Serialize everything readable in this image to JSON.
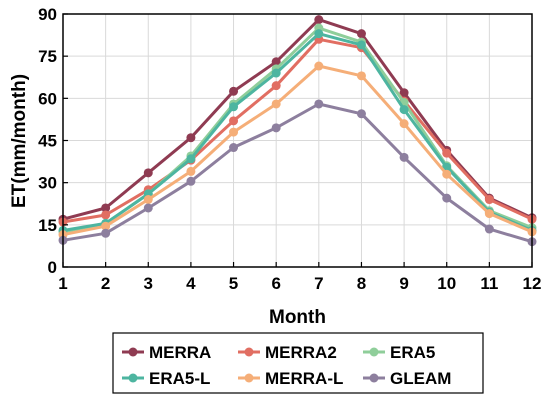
{
  "chart_data": {
    "type": "line",
    "xlabel": "Month",
    "ylabel": "ET(mm/month)",
    "x": [
      1,
      2,
      3,
      4,
      5,
      6,
      7,
      8,
      9,
      10,
      11,
      12
    ],
    "xlim": [
      1,
      12
    ],
    "ylim": [
      0,
      90
    ],
    "yticks": [
      0,
      15,
      30,
      45,
      60,
      75,
      90
    ],
    "grid": true,
    "legend_position": "bottom",
    "series": [
      {
        "name": "MERRA",
        "color": "#8f3b52",
        "values": [
          17,
          21,
          33.5,
          46,
          62.5,
          73,
          88,
          83,
          62,
          41.5,
          24.5,
          17.5
        ]
      },
      {
        "name": "MERRA2",
        "color": "#e16e62",
        "values": [
          16,
          18.5,
          27.5,
          38,
          52,
          64.5,
          81,
          78,
          59,
          40.5,
          24,
          17
        ]
      },
      {
        "name": "ERA5",
        "color": "#8fce9a",
        "values": [
          12.5,
          15.5,
          26,
          39.5,
          58,
          70.5,
          85,
          80,
          58.5,
          36,
          20,
          14
        ]
      },
      {
        "name": "ERA5-L",
        "color": "#4db5a0",
        "values": [
          13,
          15.5,
          26,
          38.5,
          57,
          69,
          83,
          79,
          56,
          35.5,
          19.5,
          13
        ]
      },
      {
        "name": "MERRA-L",
        "color": "#f5ae78",
        "values": [
          11.5,
          14.5,
          24,
          34,
          48,
          58,
          71.5,
          68,
          51,
          33,
          19,
          12.5
        ]
      },
      {
        "name": "GLEAM",
        "color": "#8d7f9e",
        "values": [
          9.5,
          12,
          21,
          30.5,
          42.5,
          49.5,
          58,
          54.5,
          39,
          24.5,
          13.5,
          9
        ]
      }
    ]
  }
}
